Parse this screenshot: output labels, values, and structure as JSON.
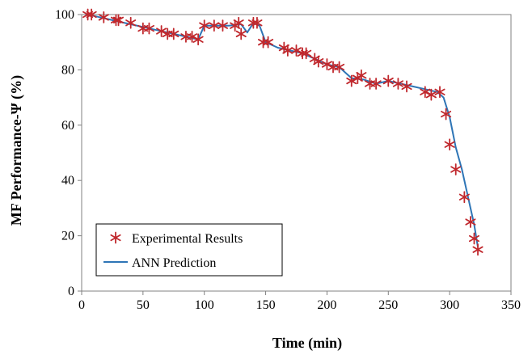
{
  "chart_data": {
    "type": "line",
    "xlabel": "Time (min)",
    "ylabel": "MF Performance-Ψ (%)",
    "xlim": [
      0,
      350
    ],
    "ylim": [
      0,
      100
    ],
    "xticks": [
      0,
      50,
      100,
      150,
      200,
      250,
      300,
      350
    ],
    "yticks": [
      0,
      20,
      40,
      60,
      80,
      100
    ],
    "xtick_labels": [
      "0",
      "50",
      "100",
      "150",
      "200",
      "250",
      "300",
      "350"
    ],
    "ytick_labels": [
      "0",
      "20",
      "40",
      "60",
      "80",
      "100"
    ],
    "grid": false,
    "legend_position": "bottom-left",
    "colors": {
      "experimental": "#c0282d",
      "ann": "#2e75b6",
      "axis": "#808080"
    },
    "series": [
      {
        "name": "Experimental Results",
        "marker": "asterisk",
        "x": [
          5,
          8,
          18,
          28,
          30,
          40,
          50,
          55,
          65,
          70,
          75,
          85,
          90,
          95,
          100,
          108,
          115,
          125,
          128,
          130,
          140,
          143,
          148,
          152,
          165,
          168,
          175,
          180,
          183,
          190,
          193,
          200,
          205,
          210,
          220,
          225,
          228,
          235,
          240,
          250,
          258,
          265,
          280,
          285,
          292,
          297,
          300,
          305,
          312,
          317,
          320,
          323
        ],
        "y": [
          100,
          100,
          99,
          98,
          98,
          97,
          95,
          95,
          94,
          93,
          93,
          92,
          92,
          91,
          96,
          96,
          96,
          96,
          97,
          93,
          97,
          97,
          90,
          90,
          88,
          87,
          87,
          86,
          86,
          84,
          83,
          82,
          81,
          81,
          76,
          77,
          78,
          75,
          75,
          76,
          75,
          74,
          72,
          71,
          72,
          64,
          53,
          44,
          34,
          25,
          19,
          15
        ]
      },
      {
        "name": "ANN Prediction",
        "marker": "none",
        "x": [
          3,
          10,
          20,
          30,
          40,
          50,
          60,
          70,
          80,
          90,
          95,
          100,
          110,
          120,
          130,
          135,
          140,
          145,
          150,
          160,
          170,
          180,
          190,
          200,
          210,
          220,
          230,
          240,
          250,
          260,
          270,
          280,
          290,
          295,
          300,
          305,
          310,
          315,
          320,
          323
        ],
        "y": [
          100,
          99.5,
          98.5,
          97.5,
          96.5,
          95.5,
          94.5,
          93.5,
          92.5,
          91.5,
          91,
          96,
          96,
          96,
          96.5,
          93.5,
          97,
          96,
          90,
          88,
          87,
          86,
          84,
          82,
          81,
          77,
          76.5,
          75,
          76,
          75,
          74,
          73,
          72,
          70,
          63,
          52,
          44,
          34,
          24,
          16
        ]
      }
    ]
  }
}
